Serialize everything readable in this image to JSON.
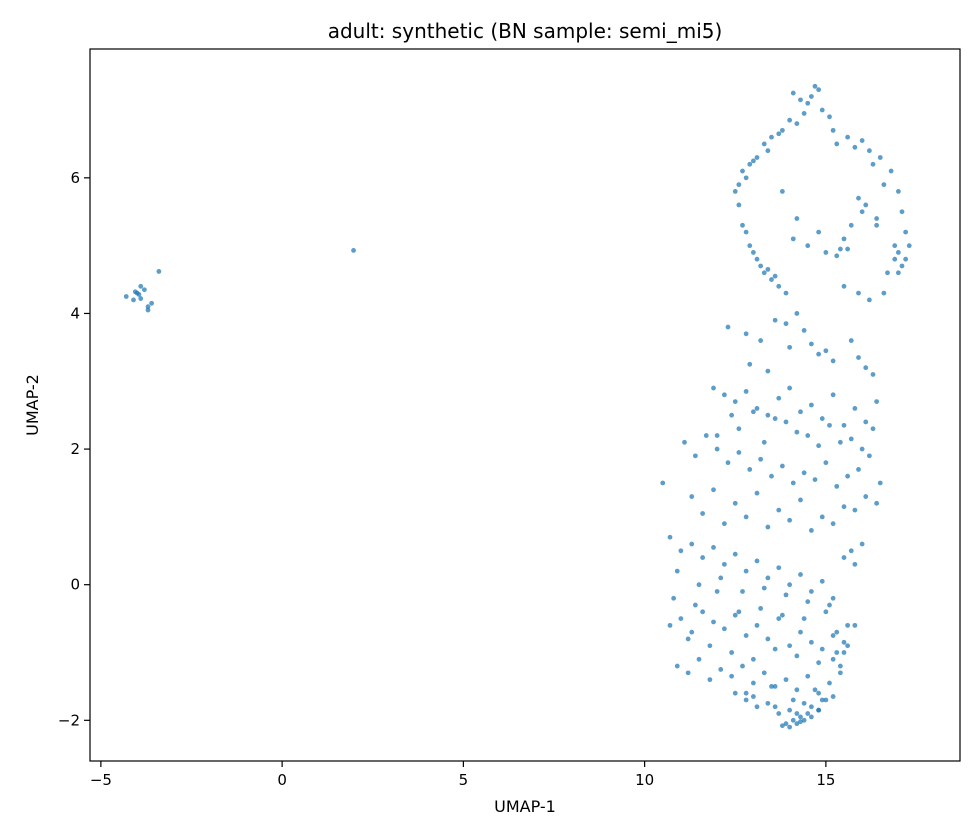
{
  "chart_data": {
    "type": "scatter",
    "title": "adult: synthetic (BN sample: semi_mi5)",
    "xlabel": "UMAP-1",
    "ylabel": "UMAP-2",
    "xlim": [
      -5.3,
      18.7
    ],
    "ylim": [
      -2.6,
      7.9
    ],
    "xticks": [
      -5,
      0,
      5,
      10,
      15
    ],
    "xtick_labels": [
      "−5",
      "0",
      "5",
      "10",
      "15"
    ],
    "yticks": [
      -2,
      0,
      2,
      4,
      6
    ],
    "ytick_labels": [
      "−2",
      "0",
      "2",
      "4",
      "6"
    ],
    "grid": false,
    "legend": "none",
    "colors": {
      "point": "#1f77b4"
    },
    "series": [
      {
        "x": [
          -4.3,
          -4.1,
          -4.0,
          -3.9,
          -3.8,
          -3.9,
          -3.7,
          -3.6,
          -3.7,
          -3.4,
          -3.95,
          -4.05,
          1.97,
          14.6,
          14.8,
          14.5,
          14.9,
          14.3,
          14.1,
          15.1,
          14.7,
          14.4,
          14.0,
          13.8,
          13.5,
          13.3,
          13.1,
          12.9,
          12.7,
          12.6,
          12.5,
          12.8,
          13.0,
          13.4,
          13.7,
          14.2,
          15.3,
          15.6,
          15.8,
          16.0,
          16.2,
          16.5,
          16.8,
          17.0,
          17.1,
          17.2,
          17.3,
          17.0,
          16.9,
          17.1,
          16.7,
          16.4,
          16.1,
          15.9,
          15.7,
          15.5,
          15.4,
          16.3,
          16.6,
          15.2,
          12.6,
          12.7,
          12.9,
          13.1,
          13.3,
          13.5,
          13.7,
          13.9,
          13.2,
          13.0,
          12.8,
          13.6,
          13.4,
          14.1,
          14.5,
          15.0,
          15.5,
          15.9,
          16.2,
          16.6,
          17.0,
          17.2,
          16.9,
          16.4,
          16.0,
          15.6,
          15.3,
          14.8,
          14.2,
          13.8,
          12.3,
          12.8,
          13.2,
          13.6,
          14.0,
          14.4,
          14.8,
          15.2,
          15.7,
          16.1,
          13.9,
          14.6,
          15.0,
          12.9,
          13.4,
          15.9,
          16.3,
          14.2,
          11.9,
          12.2,
          12.5,
          12.8,
          13.1,
          13.4,
          13.7,
          14.0,
          14.3,
          14.6,
          14.9,
          15.2,
          15.5,
          15.8,
          16.1,
          16.4,
          12.0,
          12.6,
          13.3,
          13.9,
          14.5,
          15.1,
          15.7,
          16.3,
          12.4,
          13.0,
          13.6,
          14.2,
          14.8,
          15.4,
          16.0,
          11.1,
          11.4,
          11.7,
          12.0,
          12.3,
          12.6,
          12.9,
          13.2,
          13.5,
          13.8,
          14.1,
          14.4,
          14.7,
          15.0,
          15.3,
          15.6,
          15.9,
          16.2,
          16.5,
          11.3,
          11.9,
          12.5,
          13.1,
          13.7,
          14.3,
          14.9,
          15.5,
          16.1,
          10.5,
          11.6,
          12.2,
          12.8,
          13.4,
          14.0,
          14.6,
          15.2,
          15.8,
          16.4,
          10.7,
          11.0,
          11.3,
          11.6,
          11.9,
          12.2,
          12.5,
          12.8,
          13.1,
          13.4,
          13.7,
          14.0,
          14.3,
          14.6,
          14.9,
          15.2,
          15.5,
          15.8,
          16.0,
          10.9,
          11.5,
          12.1,
          12.7,
          13.3,
          13.9,
          14.5,
          15.1,
          15.7,
          10.8,
          11.4,
          12.0,
          12.6,
          13.2,
          13.8,
          14.4,
          15.0,
          15.6,
          10.7,
          11.0,
          11.3,
          11.6,
          11.9,
          12.2,
          12.5,
          12.8,
          13.1,
          13.4,
          13.7,
          14.0,
          14.3,
          14.6,
          14.9,
          15.2,
          15.5,
          15.8,
          11.2,
          11.8,
          12.4,
          13.0,
          13.6,
          14.2,
          14.8,
          15.4,
          15.6,
          15.3,
          10.9,
          11.2,
          11.5,
          11.8,
          12.1,
          12.4,
          12.7,
          13.0,
          13.3,
          13.6,
          13.9,
          14.2,
          14.5,
          14.8,
          15.1,
          15.4,
          15.2,
          15.5,
          15.3,
          12.8,
          13.5,
          14.1,
          14.7,
          12.5,
          12.8,
          13.1,
          13.4,
          13.7,
          14.0,
          14.3,
          14.6,
          14.9,
          15.2,
          13.0,
          13.6,
          14.2,
          14.8,
          15.0,
          14.4,
          13.9,
          14.0,
          14.1,
          14.2,
          14.4,
          14.6,
          14.8,
          13.8,
          14.5,
          14.3
        ],
        "y": [
          4.25,
          4.2,
          4.3,
          4.4,
          4.35,
          4.22,
          4.1,
          4.15,
          4.05,
          4.62,
          4.28,
          4.32,
          4.93,
          7.2,
          7.3,
          7.1,
          7.0,
          7.15,
          7.25,
          6.9,
          7.35,
          6.95,
          6.85,
          6.7,
          6.6,
          6.5,
          6.3,
          6.2,
          6.1,
          5.9,
          5.8,
          6.0,
          6.25,
          6.4,
          6.65,
          6.8,
          6.5,
          6.6,
          6.45,
          6.55,
          6.4,
          6.3,
          6.1,
          5.8,
          5.5,
          5.2,
          5.0,
          4.9,
          4.8,
          4.7,
          4.6,
          5.4,
          5.6,
          5.7,
          5.3,
          5.1,
          4.95,
          6.2,
          5.9,
          6.7,
          5.6,
          5.3,
          5.0,
          4.8,
          4.6,
          4.5,
          4.4,
          4.3,
          4.7,
          4.9,
          5.2,
          4.55,
          4.65,
          5.1,
          5.0,
          4.9,
          4.4,
          4.3,
          4.2,
          4.3,
          4.6,
          4.8,
          5.0,
          5.3,
          5.5,
          4.95,
          4.85,
          5.2,
          5.4,
          5.8,
          3.8,
          3.7,
          3.6,
          3.9,
          3.5,
          3.75,
          3.4,
          3.3,
          3.6,
          3.2,
          3.85,
          3.55,
          3.45,
          3.25,
          3.15,
          3.35,
          3.1,
          4.0,
          2.9,
          2.8,
          2.7,
          2.85,
          2.6,
          2.5,
          2.75,
          2.9,
          2.55,
          2.65,
          2.45,
          2.8,
          2.35,
          2.6,
          2.4,
          2.7,
          2.2,
          2.3,
          2.1,
          2.4,
          2.2,
          2.35,
          2.15,
          2.3,
          2.5,
          2.55,
          2.45,
          2.25,
          2.05,
          2.1,
          2.0,
          2.1,
          1.9,
          2.2,
          2.0,
          1.8,
          1.95,
          1.7,
          1.85,
          1.6,
          1.75,
          1.5,
          1.65,
          1.55,
          1.8,
          1.45,
          1.6,
          1.7,
          1.9,
          1.5,
          1.3,
          1.4,
          1.2,
          1.35,
          1.1,
          1.25,
          1.0,
          1.15,
          1.3,
          1.5,
          1.05,
          0.9,
          1.0,
          0.85,
          0.95,
          0.8,
          0.9,
          1.1,
          1.2,
          0.7,
          0.5,
          0.6,
          0.4,
          0.55,
          0.3,
          0.45,
          0.2,
          0.35,
          0.1,
          0.25,
          0.0,
          0.15,
          -0.1,
          0.05,
          -0.2,
          0.4,
          0.3,
          0.6,
          0.2,
          0.0,
          0.1,
          -0.1,
          -0.05,
          -0.15,
          -0.25,
          -0.3,
          0.5,
          -0.2,
          -0.3,
          -0.1,
          -0.4,
          -0.35,
          -0.45,
          -0.5,
          -0.4,
          -0.6,
          -0.6,
          -0.5,
          -0.7,
          -0.4,
          -0.55,
          -0.65,
          -0.45,
          -0.75,
          -0.6,
          -0.8,
          -0.5,
          -0.9,
          -0.7,
          -0.85,
          -0.95,
          -0.75,
          -1.0,
          -0.6,
          -0.8,
          -0.9,
          -1.0,
          -1.1,
          -0.95,
          -1.05,
          -1.15,
          -1.2,
          -0.9,
          -0.7,
          -1.2,
          -1.3,
          -1.1,
          -1.4,
          -1.25,
          -1.35,
          -1.2,
          -1.45,
          -1.3,
          -1.5,
          -1.4,
          -1.55,
          -1.35,
          -1.6,
          -1.45,
          -1.3,
          -1.1,
          -0.85,
          -1.0,
          -1.6,
          -1.5,
          -1.7,
          -1.55,
          -1.6,
          -1.7,
          -1.8,
          -1.75,
          -1.9,
          -1.85,
          -1.95,
          -1.8,
          -1.7,
          -1.65,
          -1.65,
          -1.8,
          -1.9,
          -1.85,
          -1.7,
          -1.75,
          -2.05,
          -2.1,
          -2.0,
          -2.05,
          -2.0,
          -1.95,
          -1.85,
          -2.08,
          -1.9,
          -2.02
        ]
      }
    ]
  }
}
